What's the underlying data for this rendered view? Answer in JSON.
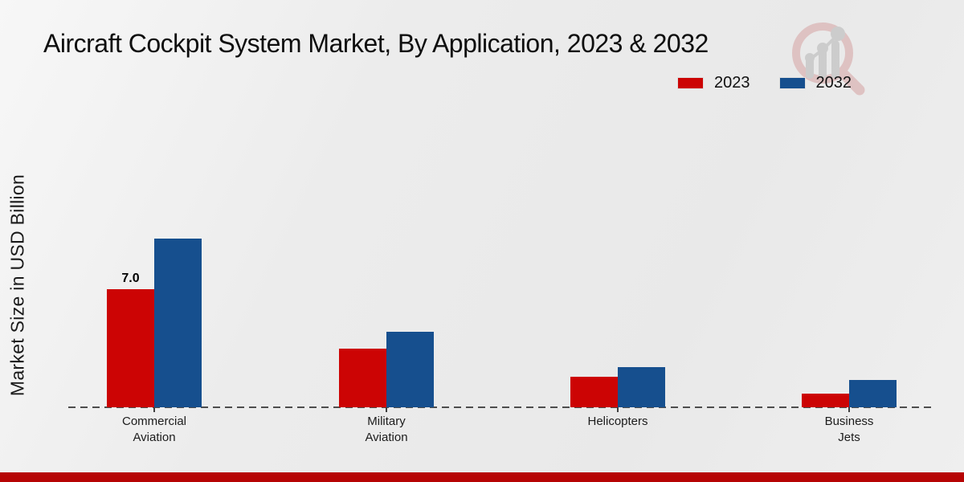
{
  "page": {
    "title": "Aircraft Cockpit System Market, By Application, 2023 & 2032",
    "ylabel": "Market Size in USD Billion"
  },
  "legend": [
    {
      "label": "2023",
      "color": "#cc0404"
    },
    {
      "label": "2032",
      "color": "#164f8e"
    }
  ],
  "colors": {
    "bar_2023": "#cc0404",
    "bar_2032": "#164f8e",
    "footer_accent": "#b60404",
    "baseline": "#4d4d4d",
    "watermark_ring": "#dcb9b9",
    "watermark_gray": "#c6c6c6"
  },
  "chart_data": {
    "type": "bar",
    "title": "Aircraft Cockpit System Market, By Application, 2023 & 2032",
    "xlabel": "",
    "ylabel": "Market Size in USD Billion",
    "categories": [
      "Commercial Aviation",
      "Military Aviation",
      "Helicopters",
      "Business Jets"
    ],
    "category_lines": [
      [
        "Commercial",
        "Aviation"
      ],
      [
        "Military",
        "Aviation"
      ],
      [
        "Helicopters"
      ],
      [
        "Business",
        "Jets"
      ]
    ],
    "series": [
      {
        "name": "2023",
        "color": "#cc0404",
        "values": [
          7.0,
          3.5,
          1.8,
          0.8
        ]
      },
      {
        "name": "2032",
        "color": "#164f8e",
        "values": [
          10.0,
          4.5,
          2.4,
          1.6
        ]
      }
    ],
    "bar_labels": [
      {
        "series_index": 0,
        "category_index": 0,
        "text": "7.0"
      }
    ],
    "ylim": [
      0,
      10.5
    ],
    "grid": false,
    "y_axis_ticks_visible": false,
    "legend_position": "top-right",
    "baseline_style": "dashed"
  }
}
